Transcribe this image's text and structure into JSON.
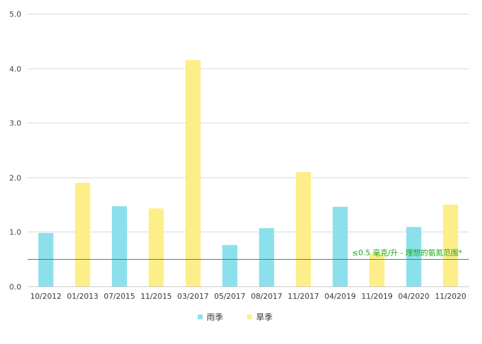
{
  "chart_data": {
    "type": "bar",
    "categories": [
      "10/2012",
      "01/2013",
      "07/2015",
      "11/2015",
      "03/2017",
      "05/2017",
      "08/2017",
      "11/2017",
      "04/2019",
      "11/2019",
      "04/2020",
      "11/2020"
    ],
    "values": [
      0.98,
      1.9,
      1.47,
      1.43,
      4.15,
      0.76,
      1.07,
      2.1,
      1.46,
      0.6,
      1.09,
      1.5
    ],
    "season": [
      "wet",
      "dry",
      "wet",
      "dry",
      "dry",
      "wet",
      "wet",
      "dry",
      "wet",
      "dry",
      "wet",
      "dry"
    ],
    "series": [
      {
        "key": "wet",
        "name": "雨季",
        "color": "#8ce0ec"
      },
      {
        "key": "dry",
        "name": "旱季",
        "color": "#fdee8a"
      }
    ],
    "y_ticks": [
      "0.0",
      "1.0",
      "2.0",
      "3.0",
      "4.0",
      "5.0"
    ],
    "ylim": [
      0,
      5
    ],
    "reference_line": {
      "value": 0.5,
      "label": "≤0.5 毫克/升 - 理想的氨氮范围*",
      "color": "#1aa81a"
    },
    "grid": true,
    "legend_position": "bottom"
  }
}
